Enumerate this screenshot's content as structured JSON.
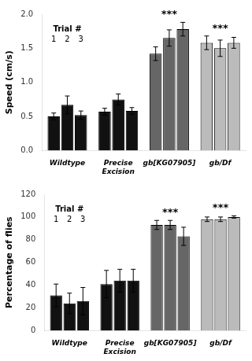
{
  "chart_data": [
    {
      "type": "bar",
      "ylabel": "Speed (cm/s)",
      "categories": [
        "Wildtype",
        "Precise\nExcision",
        "gb[KG07905]",
        "gb/Df"
      ],
      "series": [
        {
          "name": "1",
          "colors": [
            "#111111",
            "#111111",
            "#666666",
            "#bbbbbb"
          ],
          "values": [
            0.5,
            0.57,
            1.42,
            1.58
          ],
          "errors": [
            0.05,
            0.05,
            0.1,
            0.1
          ]
        },
        {
          "name": "2",
          "colors": [
            "#111111",
            "#111111",
            "#666666",
            "#bbbbbb"
          ],
          "values": [
            0.67,
            0.75,
            1.65,
            1.5
          ],
          "errors": [
            0.13,
            0.08,
            0.12,
            0.12
          ]
        },
        {
          "name": "3",
          "colors": [
            "#111111",
            "#111111",
            "#666666",
            "#bbbbbb"
          ],
          "values": [
            0.52,
            0.58,
            1.78,
            1.58
          ],
          "errors": [
            0.06,
            0.05,
            0.1,
            0.08
          ]
        }
      ],
      "ylim": [
        0.0,
        2.0
      ],
      "yticks": [
        {
          "value": 0,
          "label": "0.0"
        },
        0.5,
        {
          "value": 1,
          "label": "1.0"
        },
        1.5,
        {
          "value": 2,
          "label": "2.0"
        }
      ],
      "grid": false,
      "annotations": [
        {
          "text": "Trial #"
        },
        {
          "text": "***",
          "category": "gb[KG07905]"
        },
        {
          "text": "***",
          "category": "gb/Df"
        }
      ]
    },
    {
      "type": "bar",
      "ylabel": "Percentage of flies",
      "categories": [
        "Wildtype",
        "Precise\nExcision",
        "gb[KG07905]",
        "gb/Df"
      ],
      "series": [
        {
          "name": "1",
          "colors": [
            "#111111",
            "#111111",
            "#666666",
            "#bbbbbb"
          ],
          "values": [
            31,
            41,
            93,
            98
          ],
          "errors": [
            10,
            12,
            4,
            2
          ]
        },
        {
          "name": "2",
          "colors": [
            "#111111",
            "#111111",
            "#666666",
            "#bbbbbb"
          ],
          "values": [
            24,
            44,
            93,
            98
          ],
          "errors": [
            9,
            10,
            4,
            2
          ]
        },
        {
          "name": "3",
          "colors": [
            "#111111",
            "#111111",
            "#666666",
            "#bbbbbb"
          ],
          "values": [
            26,
            44,
            83,
            100
          ],
          "errors": [
            12,
            10,
            8,
            1
          ]
        }
      ],
      "ylim": [
        0,
        120
      ],
      "yticks": [
        0,
        20,
        40,
        60,
        80,
        100,
        120
      ],
      "grid": false,
      "annotations": [
        {
          "text": "Trial #"
        },
        {
          "text": "***",
          "category": "gb[KG07905]"
        },
        {
          "text": "***",
          "category": "gb/Df"
        }
      ]
    }
  ]
}
